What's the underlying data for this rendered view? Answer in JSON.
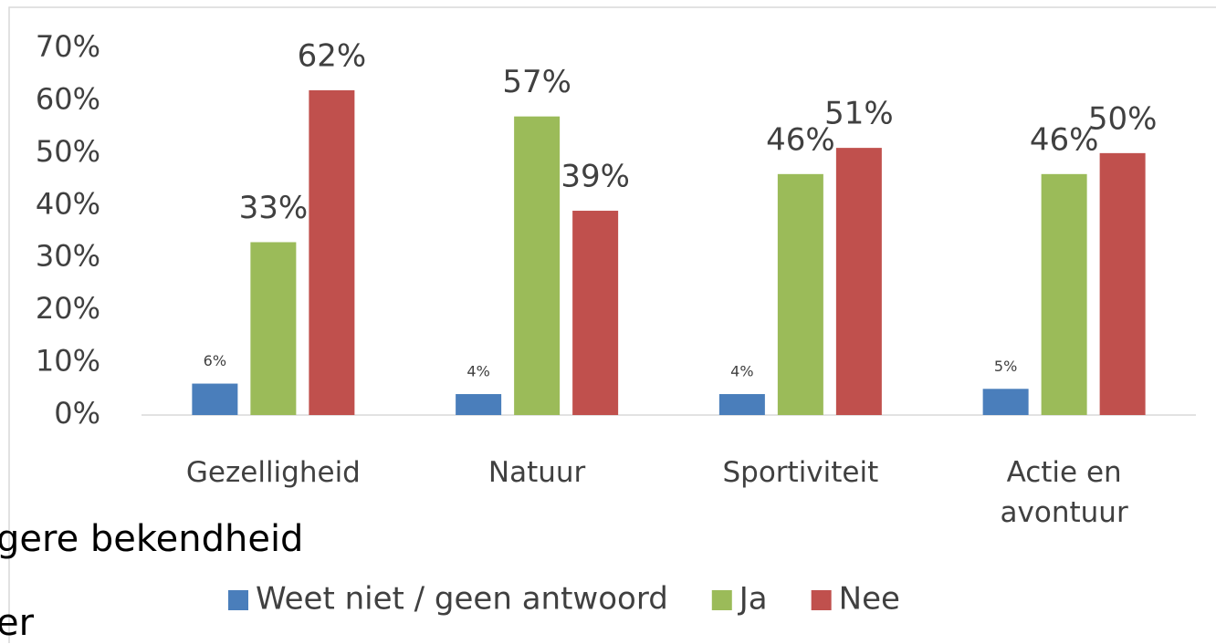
{
  "chart_data": {
    "type": "bar",
    "categories": [
      "Gezelligheid",
      "Natuur",
      "Sportiviteit",
      "Actie en avontuur"
    ],
    "series": [
      {
        "name": "Weet niet / geen antwoord",
        "color": "#4a7ebb",
        "values": [
          6,
          4,
          4,
          5
        ],
        "value_labels": [
          "6%",
          "4%",
          "4%",
          "5%"
        ]
      },
      {
        "name": "Ja",
        "color": "#9bbb59",
        "values": [
          33,
          57,
          46,
          46
        ],
        "value_labels": [
          "33%",
          "57%",
          "46%",
          "46%"
        ]
      },
      {
        "name": "Nee",
        "color": "#c0504d",
        "values": [
          62,
          39,
          51,
          50
        ],
        "value_labels": [
          "62%",
          "39%",
          "51%",
          "50%"
        ]
      }
    ],
    "ylim": [
      0,
      70
    ],
    "yticks": [
      {
        "value": 0,
        "label": "0%"
      },
      {
        "value": 10,
        "label": "10%"
      },
      {
        "value": 20,
        "label": "20%"
      },
      {
        "value": 30,
        "label": "30%"
      },
      {
        "value": 40,
        "label": "40%"
      },
      {
        "value": 50,
        "label": "50%"
      },
      {
        "value": 60,
        "label": "60%"
      },
      {
        "value": 70,
        "label": "70%"
      }
    ],
    "grid": false,
    "legend": "bottom",
    "annotations": [
      "gere bekendheid",
      "er"
    ]
  }
}
